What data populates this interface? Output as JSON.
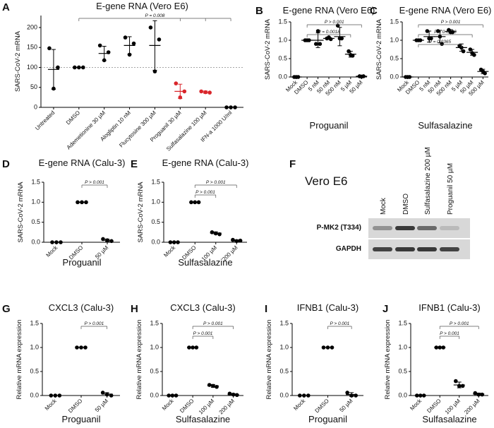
{
  "chart_data": [
    {
      "type": "dot",
      "panel": "A",
      "title": "E-gene RNA (Vero E6)",
      "ylabel": "SARS-CoV-2 mRNA",
      "categories": [
        "Untreated",
        "DMSO",
        "Ademetionine 30 µM",
        "Alogliptin 10 nM",
        "Flucytosine 300 µM",
        "Proguanil 30 µM",
        "Sulfasalazine 100 µM",
        "IFN-a 1000 U/ml"
      ],
      "values": [
        [
          148,
          47,
          100
        ],
        [
          100,
          100,
          100
        ],
        [
          155,
          118,
          138
        ],
        [
          175,
          132,
          160
        ],
        [
          200,
          90,
          170
        ],
        [
          60,
          25,
          40
        ],
        [
          40,
          38,
          37
        ],
        [
          0,
          0,
          0
        ]
      ],
      "means": [
        95,
        100,
        135,
        155,
        155,
        40,
        38,
        0
      ],
      "errors": [
        50,
        0,
        18,
        22,
        62,
        18,
        3,
        0
      ],
      "point_colors": [
        "#000000",
        "#000000",
        "#000000",
        "#000000",
        "#000000",
        "#d9262b",
        "#d9262b",
        "#000000"
      ],
      "reference_line": 100,
      "ylim": [
        0,
        230
      ],
      "yticks": [
        0,
        50,
        100,
        150,
        200
      ],
      "annotations": [
        {
          "text": "P = 0.008",
          "from": 1,
          "to": [
            5,
            6,
            7
          ]
        }
      ]
    },
    {
      "type": "dot",
      "panel": "B",
      "title": "E-gene RNA (Vero E6)",
      "ylabel": "SARS-CoV-2 mRNA",
      "xlabel": "Proguanil",
      "categories": [
        "Mock",
        "DMSO",
        "5 nM",
        "50 nM",
        "500 nM",
        "5 µM",
        "50 µM"
      ],
      "values": [
        [
          0,
          0,
          0
        ],
        [
          1,
          1,
          1
        ],
        [
          0.9,
          1.25,
          0.9
        ],
        [
          1.05,
          1.08,
          1.03
        ],
        [
          1.4,
          1.05,
          1.05
        ],
        [
          0.7,
          0.6,
          0.58
        ],
        [
          0.02,
          0.01,
          0.02
        ]
      ],
      "means": [
        0,
        1,
        1.0,
        1.05,
        1.1,
        0.62,
        0.02
      ],
      "errors": [
        0,
        0,
        0.2,
        0.03,
        0.25,
        0.08,
        0.01
      ],
      "color": "#000000",
      "ylim": [
        0,
        1.5
      ],
      "yticks": [
        {
          "value": 0,
          "label": "0.0"
        },
        0.5,
        {
          "value": 1,
          "label": "1.0"
        },
        1.5
      ],
      "annotations": [
        {
          "text": "P > 0.001",
          "from": 1,
          "to": [
            6
          ]
        },
        {
          "text": "P = 0.0018",
          "from": 1,
          "to": [
            5
          ]
        }
      ]
    },
    {
      "type": "dot",
      "panel": "C",
      "title": "E-gene RNA (Vero E6)",
      "ylabel": "SARS-CoV-2 mRNA",
      "xlabel": "Sulfasalazine",
      "categories": [
        "Mock",
        "DMSO",
        "5 nM",
        "50 nM",
        "500 nM",
        "5 µM",
        "50 µM",
        "500 µM"
      ],
      "values": [
        [
          0,
          0,
          0
        ],
        [
          1,
          1,
          1
        ],
        [
          1.25,
          1.05,
          1.05
        ],
        [
          1.25,
          1.1,
          0.9
        ],
        [
          1.28,
          1.22,
          1.22
        ],
        [
          0.85,
          0.8,
          0.7
        ],
        [
          0.75,
          0.65,
          0.6
        ],
        [
          0.2,
          0.15,
          0.1
        ]
      ],
      "means": [
        0,
        1,
        1.1,
        1.1,
        1.24,
        0.8,
        0.67,
        0.15
      ],
      "errors": [
        0,
        0,
        0.15,
        0.17,
        0.05,
        0.1,
        0.08,
        0.06
      ],
      "color": "#000000",
      "ylim": [
        0,
        1.5
      ],
      "yticks": [
        {
          "value": 0,
          "label": "0.0"
        },
        0.5,
        {
          "value": 1,
          "label": "1.0"
        },
        1.5
      ],
      "annotations": [
        {
          "text": "P > 0.001",
          "from": 1,
          "to": [
            7
          ]
        },
        {
          "text": "P = 0.0036",
          "from": 1,
          "to": [
            6
          ]
        },
        {
          "text": "P = 0.0365",
          "from": 1,
          "to": [
            5
          ]
        }
      ]
    },
    {
      "type": "dot",
      "panel": "D",
      "title": "E-gene RNA (Calu-3)",
      "ylabel": "SARS-CoV-2 mRNA",
      "xlabel": "Proguanil",
      "categories": [
        "Mock",
        "DMSO",
        "50 µM"
      ],
      "values": [
        [
          0,
          0,
          0
        ],
        [
          1,
          1,
          1
        ],
        [
          0.08,
          0.05,
          0.03
        ]
      ],
      "means": [
        0,
        1,
        0.05
      ],
      "errors": [
        0,
        0,
        0.03
      ],
      "color": "#000000",
      "ylim": [
        0,
        1.5
      ],
      "yticks": [
        {
          "value": 0,
          "label": "0.0"
        },
        0.5,
        {
          "value": 1,
          "label": "1.0"
        },
        1.5
      ],
      "annotations": [
        {
          "text": "P > 0.001",
          "from": 1,
          "to": [
            2
          ]
        }
      ]
    },
    {
      "type": "dot",
      "panel": "E",
      "title": "E-gene RNA (Calu-3)",
      "ylabel": "SARS-CoV-2 mRNA",
      "xlabel": "Sulfasalazine",
      "categories": [
        "Mock",
        "DMSO",
        "100 µM",
        "200 µM"
      ],
      "values": [
        [
          0,
          0,
          0
        ],
        [
          1,
          1,
          1
        ],
        [
          0.25,
          0.22,
          0.2
        ],
        [
          0.06,
          0.03,
          0.04
        ]
      ],
      "means": [
        0,
        1,
        0.23,
        0.04
      ],
      "errors": [
        0,
        0,
        0.03,
        0.02
      ],
      "color": "#000000",
      "ylim": [
        0,
        1.5
      ],
      "yticks": [
        {
          "value": 0,
          "label": "0.0"
        },
        0.5,
        {
          "value": 1,
          "label": "1.0"
        },
        1.5
      ],
      "annotations": [
        {
          "text": "P > 0.001",
          "from": 1,
          "to": [
            3
          ]
        },
        {
          "text": "P > 0.001",
          "from": 1,
          "to": [
            2
          ]
        }
      ]
    },
    {
      "type": "dot",
      "panel": "G",
      "title": "CXCL3 (Calu-3)",
      "ylabel": "Relative mRNA expression",
      "xlabel": "Proguanil",
      "categories": [
        "Mock",
        "DMSO",
        "50 µM"
      ],
      "values": [
        [
          0,
          0,
          0
        ],
        [
          1,
          1,
          1
        ],
        [
          0.06,
          0.02,
          0.0
        ]
      ],
      "means": [
        0,
        1,
        0.03
      ],
      "errors": [
        0,
        0,
        0.03
      ],
      "color": "#000000",
      "ylim": [
        0,
        1.5
      ],
      "yticks": [
        {
          "value": 0,
          "label": "0.0"
        },
        0.5,
        {
          "value": 1,
          "label": "1.0"
        },
        1.5
      ],
      "annotations": [
        {
          "text": "P > 0.001",
          "from": 1,
          "to": [
            2
          ]
        }
      ]
    },
    {
      "type": "dot",
      "panel": "H",
      "title": "CXCL3 (Calu-3)",
      "ylabel": "Relative mRNA expression",
      "xlabel": "Sulfasalazine",
      "categories": [
        "Mock",
        "DMSO",
        "100 µM",
        "200 µM"
      ],
      "values": [
        [
          0,
          0,
          0
        ],
        [
          1,
          1,
          1
        ],
        [
          0.22,
          0.2,
          0.18
        ],
        [
          0.04,
          0.02,
          0.01
        ]
      ],
      "means": [
        0,
        1,
        0.2,
        0.02
      ],
      "errors": [
        0,
        0,
        0.03,
        0.02
      ],
      "color": "#000000",
      "ylim": [
        0,
        1.5
      ],
      "yticks": [
        {
          "value": 0,
          "label": "0.0"
        },
        0.5,
        {
          "value": 1,
          "label": "1.0"
        },
        1.5
      ],
      "annotations": [
        {
          "text": "P > 0.001",
          "from": 1,
          "to": [
            3
          ]
        },
        {
          "text": "P > 0.001",
          "from": 1,
          "to": [
            2
          ]
        }
      ]
    },
    {
      "type": "dot",
      "panel": "I",
      "title": "IFNB1 (Calu-3)",
      "ylabel": "Relative mRNA expression",
      "xlabel": "Proguanil",
      "categories": [
        "Mock",
        "DMSO",
        "50 µM"
      ],
      "values": [
        [
          0,
          0,
          0
        ],
        [
          1,
          1,
          1
        ],
        [
          0.06,
          0.0,
          0.0
        ]
      ],
      "means": [
        0,
        1,
        0.02
      ],
      "errors": [
        0,
        0,
        0.04
      ],
      "color": "#000000",
      "ylim": [
        0,
        1.5
      ],
      "yticks": [
        {
          "value": 0,
          "label": "0.0"
        },
        0.5,
        {
          "value": 1,
          "label": "1.0"
        },
        1.5
      ],
      "annotations": [
        {
          "text": "P > 0.001",
          "from": 1,
          "to": [
            2
          ]
        }
      ]
    },
    {
      "type": "dot",
      "panel": "J",
      "title": "IFNB1 (Calu-3)",
      "ylabel": "Relative mRNA expression",
      "xlabel": "Sulfasalazine",
      "categories": [
        "Mock",
        "DMSO",
        "100 µM",
        "200 µM"
      ],
      "values": [
        [
          0,
          0,
          0
        ],
        [
          1,
          1,
          1
        ],
        [
          0.3,
          0.2,
          0.2
        ],
        [
          0.05,
          0.02,
          0.02
        ]
      ],
      "means": [
        0,
        1,
        0.22,
        0.03
      ],
      "errors": [
        0,
        0,
        0.06,
        0.02
      ],
      "color": "#000000",
      "ylim": [
        0,
        1.5
      ],
      "yticks": [
        {
          "value": 0,
          "label": "0.0"
        },
        0.5,
        {
          "value": 1,
          "label": "1.0"
        },
        1.5
      ],
      "annotations": [
        {
          "text": "P > 0.001",
          "from": 1,
          "to": [
            3
          ]
        },
        {
          "text": "P > 0.001",
          "from": 1,
          "to": [
            2
          ]
        }
      ]
    }
  ],
  "blot": {
    "panel": "F",
    "title": "Vero E6",
    "lanes": [
      "Mock",
      "DMSO",
      "Sulfasalazine 200 µM",
      "Proguanil 50 µM"
    ],
    "rows": [
      "P-MK2 (T334)",
      "GAPDH"
    ]
  }
}
